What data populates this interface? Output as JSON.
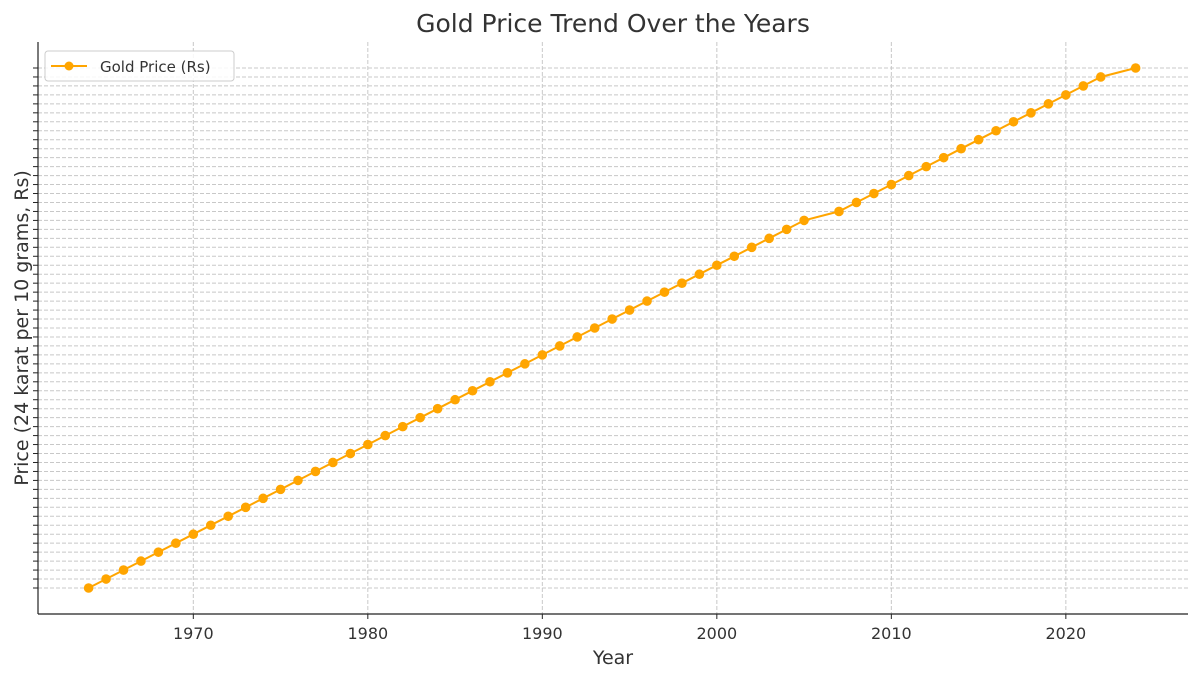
{
  "chart_data": {
    "type": "line",
    "title": "Gold Price Trend Over the Years",
    "xlabel": "Year",
    "ylabel": "Price (24 karat per 10 grams, Rs)",
    "xlim": [
      1961.1,
      2027.0
    ],
    "ylim": [
      -2.9,
      60.9
    ],
    "y_note": "categorical price labels, ranks shown (labels not rendered)",
    "x_ticks": [
      1970,
      1980,
      1990,
      2000,
      2010,
      2020
    ],
    "x_tick_labels": [
      "1970",
      "1980",
      "1990",
      "2000",
      "2010",
      "2020"
    ],
    "grid": true,
    "legend_position": "top-left",
    "series": [
      {
        "name": "Gold Price (Rs)",
        "color": "#FFA500",
        "x": [
          1964,
          1965,
          1966,
          1967,
          1968,
          1969,
          1970,
          1971,
          1972,
          1973,
          1974,
          1975,
          1976,
          1977,
          1978,
          1979,
          1980,
          1981,
          1982,
          1983,
          1984,
          1985,
          1986,
          1987,
          1988,
          1989,
          1990,
          1991,
          1992,
          1993,
          1994,
          1995,
          1996,
          1997,
          1998,
          1999,
          2000,
          2001,
          2002,
          2003,
          2004,
          2005,
          2007,
          2008,
          2009,
          2010,
          2011,
          2012,
          2013,
          2014,
          2015,
          2016,
          2017,
          2018,
          2019,
          2020,
          2021,
          2022,
          2024
        ],
        "y": [
          0,
          1,
          2,
          3,
          4,
          5,
          6,
          7,
          8,
          9,
          10,
          11,
          12,
          13,
          14,
          15,
          16,
          17,
          18,
          19,
          20,
          21,
          22,
          23,
          24,
          25,
          26,
          27,
          28,
          29,
          30,
          31,
          32,
          33,
          34,
          35,
          36,
          37,
          38,
          39,
          40,
          41,
          42,
          43,
          44,
          45,
          46,
          47,
          48,
          49,
          50,
          51,
          52,
          53,
          54,
          55,
          56,
          57,
          58
        ]
      }
    ]
  }
}
